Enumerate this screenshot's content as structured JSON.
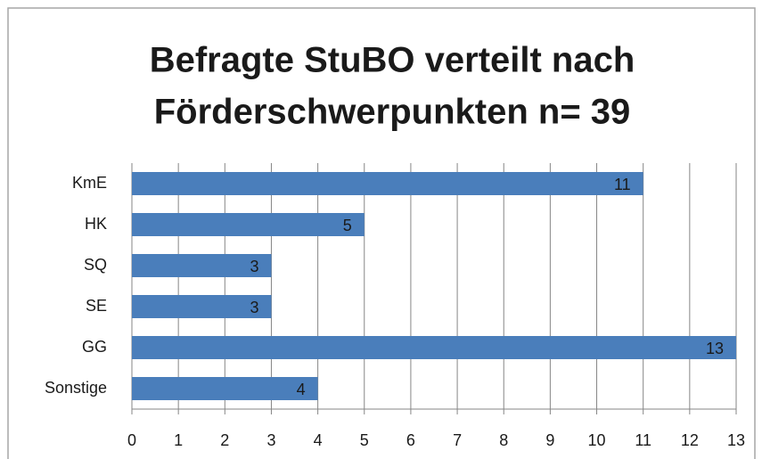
{
  "chart_data": {
    "type": "bar",
    "orientation": "horizontal",
    "title": [
      "Befragte StuBO verteilt nach",
      "Förderschwerpunkten n= 39"
    ],
    "categories": [
      "KmE",
      "HK",
      "SQ",
      "SE",
      "GG",
      "Sonstige"
    ],
    "values": [
      11,
      5,
      3,
      3,
      13,
      4
    ],
    "color": "#4a7ebb",
    "xlim": [
      0,
      13
    ],
    "xticks": [
      0,
      1,
      2,
      3,
      4,
      5,
      6,
      7,
      8,
      9,
      10,
      11,
      12,
      13
    ],
    "grid": true
  }
}
